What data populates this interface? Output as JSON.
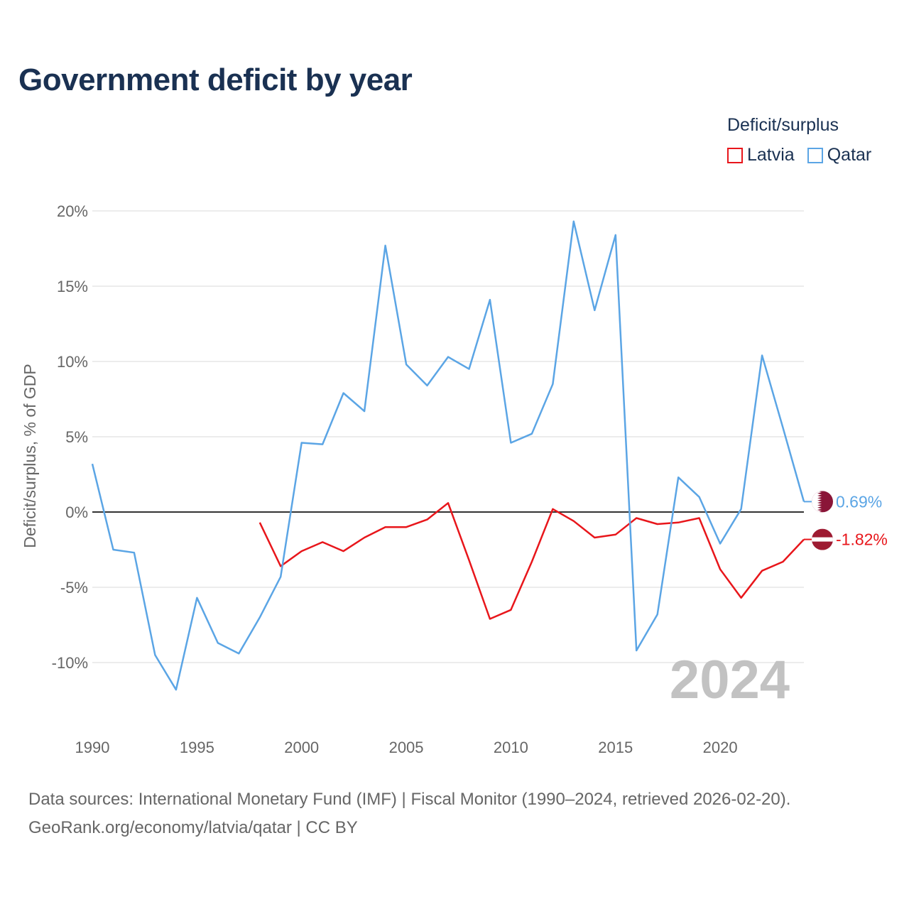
{
  "title": "Government deficit by year",
  "legend": {
    "title": "Deficit/surplus",
    "items": [
      {
        "label": "Latvia",
        "color": "#e8161b"
      },
      {
        "label": "Qatar",
        "color": "#5ba5e5"
      }
    ]
  },
  "year_watermark": "2024",
  "footer": {
    "line1": "Data sources: International Monetary Fund (IMF) | Fiscal Monitor (1990–2024, retrieved 2026-02-20).",
    "line2": "GeoRank.org/economy/latvia/qatar | CC BY"
  },
  "chart_data": {
    "type": "line",
    "title": "Government deficit by year",
    "xlabel": "",
    "ylabel": "Deficit/surplus, % of GDP",
    "xlim": [
      1990,
      2024
    ],
    "ylim": [
      -13,
      21
    ],
    "x_ticks": [
      1990,
      1995,
      2000,
      2005,
      2010,
      2015,
      2020
    ],
    "y_ticks": [
      {
        "value": 20,
        "label": "20%"
      },
      {
        "value": 15,
        "label": "15%"
      },
      {
        "value": 10,
        "label": "10%"
      },
      {
        "value": 5,
        "label": "5%"
      },
      {
        "value": 0,
        "label": "0%"
      },
      {
        "value": -5,
        "label": "-5%"
      },
      {
        "value": -10,
        "label": "-10%"
      }
    ],
    "series": [
      {
        "name": "Latvia",
        "color": "#e8161b",
        "end_label": "-1.82%",
        "flag": "latvia-flag",
        "x": [
          1998,
          1999,
          2000,
          2001,
          2002,
          2003,
          2004,
          2005,
          2006,
          2007,
          2008,
          2009,
          2010,
          2011,
          2012,
          2013,
          2014,
          2015,
          2016,
          2017,
          2018,
          2019,
          2020,
          2021,
          2022,
          2023,
          2024
        ],
        "values": [
          -0.7,
          -3.6,
          -2.6,
          -2.0,
          -2.6,
          -1.7,
          -1.0,
          -1.0,
          -0.5,
          0.6,
          -3.2,
          -7.1,
          -6.5,
          -3.3,
          0.2,
          -0.6,
          -1.7,
          -1.5,
          -0.4,
          -0.8,
          -0.7,
          -0.4,
          -3.8,
          -5.7,
          -3.9,
          -3.3,
          -1.82
        ]
      },
      {
        "name": "Qatar",
        "color": "#5ba5e5",
        "end_label": "0.69%",
        "flag": "qatar-flag",
        "x": [
          1990,
          1991,
          1992,
          1993,
          1994,
          1995,
          1996,
          1997,
          1998,
          1999,
          2000,
          2001,
          2002,
          2003,
          2004,
          2005,
          2006,
          2007,
          2008,
          2009,
          2010,
          2011,
          2012,
          2013,
          2014,
          2015,
          2016,
          2017,
          2018,
          2019,
          2020,
          2021,
          2022,
          2023,
          2024
        ],
        "values": [
          3.2,
          -2.5,
          -2.7,
          -9.5,
          -11.8,
          -5.7,
          -8.7,
          -9.4,
          -7.0,
          -4.3,
          4.6,
          4.5,
          7.9,
          6.7,
          17.7,
          9.8,
          8.4,
          10.3,
          9.5,
          14.1,
          4.6,
          5.2,
          8.5,
          19.3,
          13.4,
          18.4,
          -9.2,
          -6.8,
          2.3,
          1.0,
          -2.1,
          0.2,
          10.4,
          5.6,
          0.69
        ]
      }
    ]
  }
}
